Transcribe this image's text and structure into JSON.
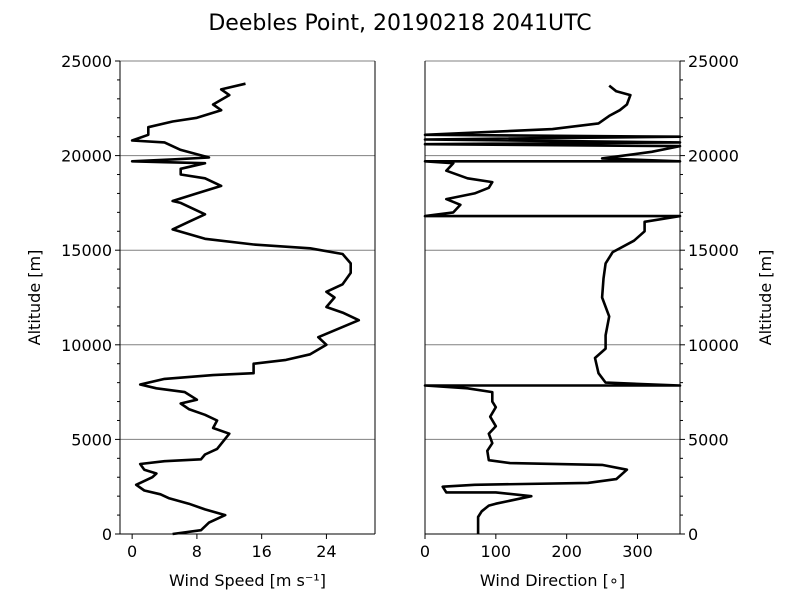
{
  "title": "Deebles Point, 20190218 2041UTC",
  "chart_data": [
    {
      "type": "line",
      "name": "wind-speed-panel",
      "xlabel": "Wind Speed [m s⁻¹]",
      "ylabel": "Altitude [m]",
      "xlim": [
        -1.5,
        30
      ],
      "ylim": [
        0,
        25000
      ],
      "xticks": [
        0,
        8,
        16,
        24
      ],
      "yticks": [
        0,
        5000,
        10000,
        15000,
        20000,
        25000
      ],
      "ylabel_side": "left",
      "grid": "horizontal",
      "series": [
        {
          "points": [
            [
              5,
              0
            ],
            [
              8.5,
              200
            ],
            [
              9.5,
              600
            ],
            [
              11.5,
              1000
            ],
            [
              9,
              1300
            ],
            [
              7,
              1600
            ],
            [
              4.5,
              1900
            ],
            [
              3.5,
              2100
            ],
            [
              1.5,
              2300
            ],
            [
              0.5,
              2600
            ],
            [
              2.5,
              3000
            ],
            [
              3,
              3200
            ],
            [
              1.5,
              3400
            ],
            [
              1,
              3700
            ],
            [
              4,
              3850
            ],
            [
              8.5,
              3950
            ],
            [
              9,
              4200
            ],
            [
              10.5,
              4500
            ],
            [
              12,
              5300
            ],
            [
              10,
              5600
            ],
            [
              10.5,
              6000
            ],
            [
              9,
              6300
            ],
            [
              7,
              6600
            ],
            [
              6,
              6900
            ],
            [
              8,
              7100
            ],
            [
              6.5,
              7500
            ],
            [
              3,
              7700
            ],
            [
              1,
              7900
            ],
            [
              4,
              8200
            ],
            [
              10,
              8400
            ],
            [
              15,
              8500
            ],
            [
              15,
              9000
            ],
            [
              19,
              9200
            ],
            [
              22,
              9500
            ],
            [
              24,
              10000
            ],
            [
              23,
              10400
            ],
            [
              28,
              11300
            ],
            [
              26,
              11700
            ],
            [
              24,
              12000
            ],
            [
              25,
              12500
            ],
            [
              24,
              12800
            ],
            [
              26,
              13200
            ],
            [
              27,
              13800
            ],
            [
              27,
              14300
            ],
            [
              26,
              14800
            ],
            [
              22,
              15100
            ],
            [
              15,
              15300
            ],
            [
              9,
              15600
            ],
            [
              5,
              16100
            ],
            [
              7,
              16500
            ],
            [
              9,
              16900
            ],
            [
              6,
              17500
            ],
            [
              5,
              17600
            ],
            [
              8,
              18000
            ],
            [
              11,
              18400
            ],
            [
              9,
              18800
            ],
            [
              6,
              19000
            ],
            [
              6,
              19300
            ],
            [
              9,
              19600
            ],
            [
              4,
              19650
            ],
            [
              0,
              19700
            ],
            [
              5,
              19800
            ],
            [
              9.5,
              19900
            ],
            [
              6,
              20300
            ],
            [
              4,
              20700
            ],
            [
              0,
              20800
            ],
            [
              2,
              21100
            ],
            [
              2,
              21500
            ],
            [
              5,
              21800
            ],
            [
              8,
              22000
            ],
            [
              11,
              22400
            ],
            [
              10,
              22700
            ],
            [
              12,
              23200
            ],
            [
              11,
              23500
            ],
            [
              14,
              23800
            ]
          ]
        }
      ]
    },
    {
      "type": "line",
      "name": "wind-direction-panel",
      "xlabel": "Wind Direction [∘]",
      "ylabel": "Altitude [m]",
      "xlim": [
        0,
        360
      ],
      "ylim": [
        0,
        25000
      ],
      "xticks": [
        0,
        100,
        200,
        300
      ],
      "yticks": [
        0,
        5000,
        10000,
        15000,
        20000,
        25000
      ],
      "ylabel_side": "right",
      "grid": "horizontal",
      "series": [
        {
          "points": [
            [
              75,
              0
            ],
            [
              75,
              900
            ],
            [
              80,
              1200
            ],
            [
              90,
              1500
            ],
            [
              100,
              1600
            ],
            [
              150,
              2000
            ],
            [
              100,
              2200
            ],
            [
              30,
              2200
            ],
            [
              25,
              2500
            ],
            [
              70,
              2600
            ],
            [
              230,
              2700
            ],
            [
              270,
              2900
            ],
            [
              285,
              3400
            ],
            [
              250,
              3650
            ],
            [
              120,
              3750
            ],
            [
              90,
              3900
            ],
            [
              88,
              4400
            ],
            [
              95,
              4800
            ],
            [
              90,
              5300
            ],
            [
              100,
              5700
            ],
            [
              92,
              6200
            ],
            [
              100,
              6700
            ],
            [
              95,
              7000
            ],
            [
              95,
              7500
            ],
            [
              60,
              7700
            ],
            [
              0,
              7850
            ],
            [
              360,
              7850
            ],
            [
              255,
              8000
            ],
            [
              245,
              8500
            ],
            [
              240,
              9300
            ],
            [
              255,
              9800
            ],
            [
              255,
              10500
            ],
            [
              260,
              11500
            ],
            [
              250,
              12500
            ],
            [
              252,
              13500
            ],
            [
              255,
              14300
            ],
            [
              265,
              14900
            ],
            [
              295,
              15500
            ],
            [
              310,
              16000
            ],
            [
              310,
              16500
            ],
            [
              360,
              16800
            ],
            [
              0,
              16800
            ],
            [
              40,
              17000
            ],
            [
              50,
              17400
            ],
            [
              30,
              17700
            ],
            [
              70,
              18000
            ],
            [
              90,
              18300
            ],
            [
              95,
              18600
            ],
            [
              60,
              18800
            ],
            [
              30,
              19200
            ],
            [
              40,
              19600
            ],
            [
              0,
              19700
            ],
            [
              360,
              19700
            ],
            [
              250,
              19850
            ],
            [
              320,
              20200
            ],
            [
              360,
              20500
            ],
            [
              0,
              20600
            ],
            [
              360,
              20700
            ],
            [
              0,
              20850
            ],
            [
              360,
              21000
            ],
            [
              0,
              21100
            ],
            [
              180,
              21400
            ],
            [
              245,
              21700
            ],
            [
              260,
              22100
            ],
            [
              275,
              22400
            ],
            [
              285,
              22700
            ],
            [
              290,
              23200
            ],
            [
              270,
              23400
            ],
            [
              260,
              23700
            ]
          ]
        }
      ]
    }
  ]
}
